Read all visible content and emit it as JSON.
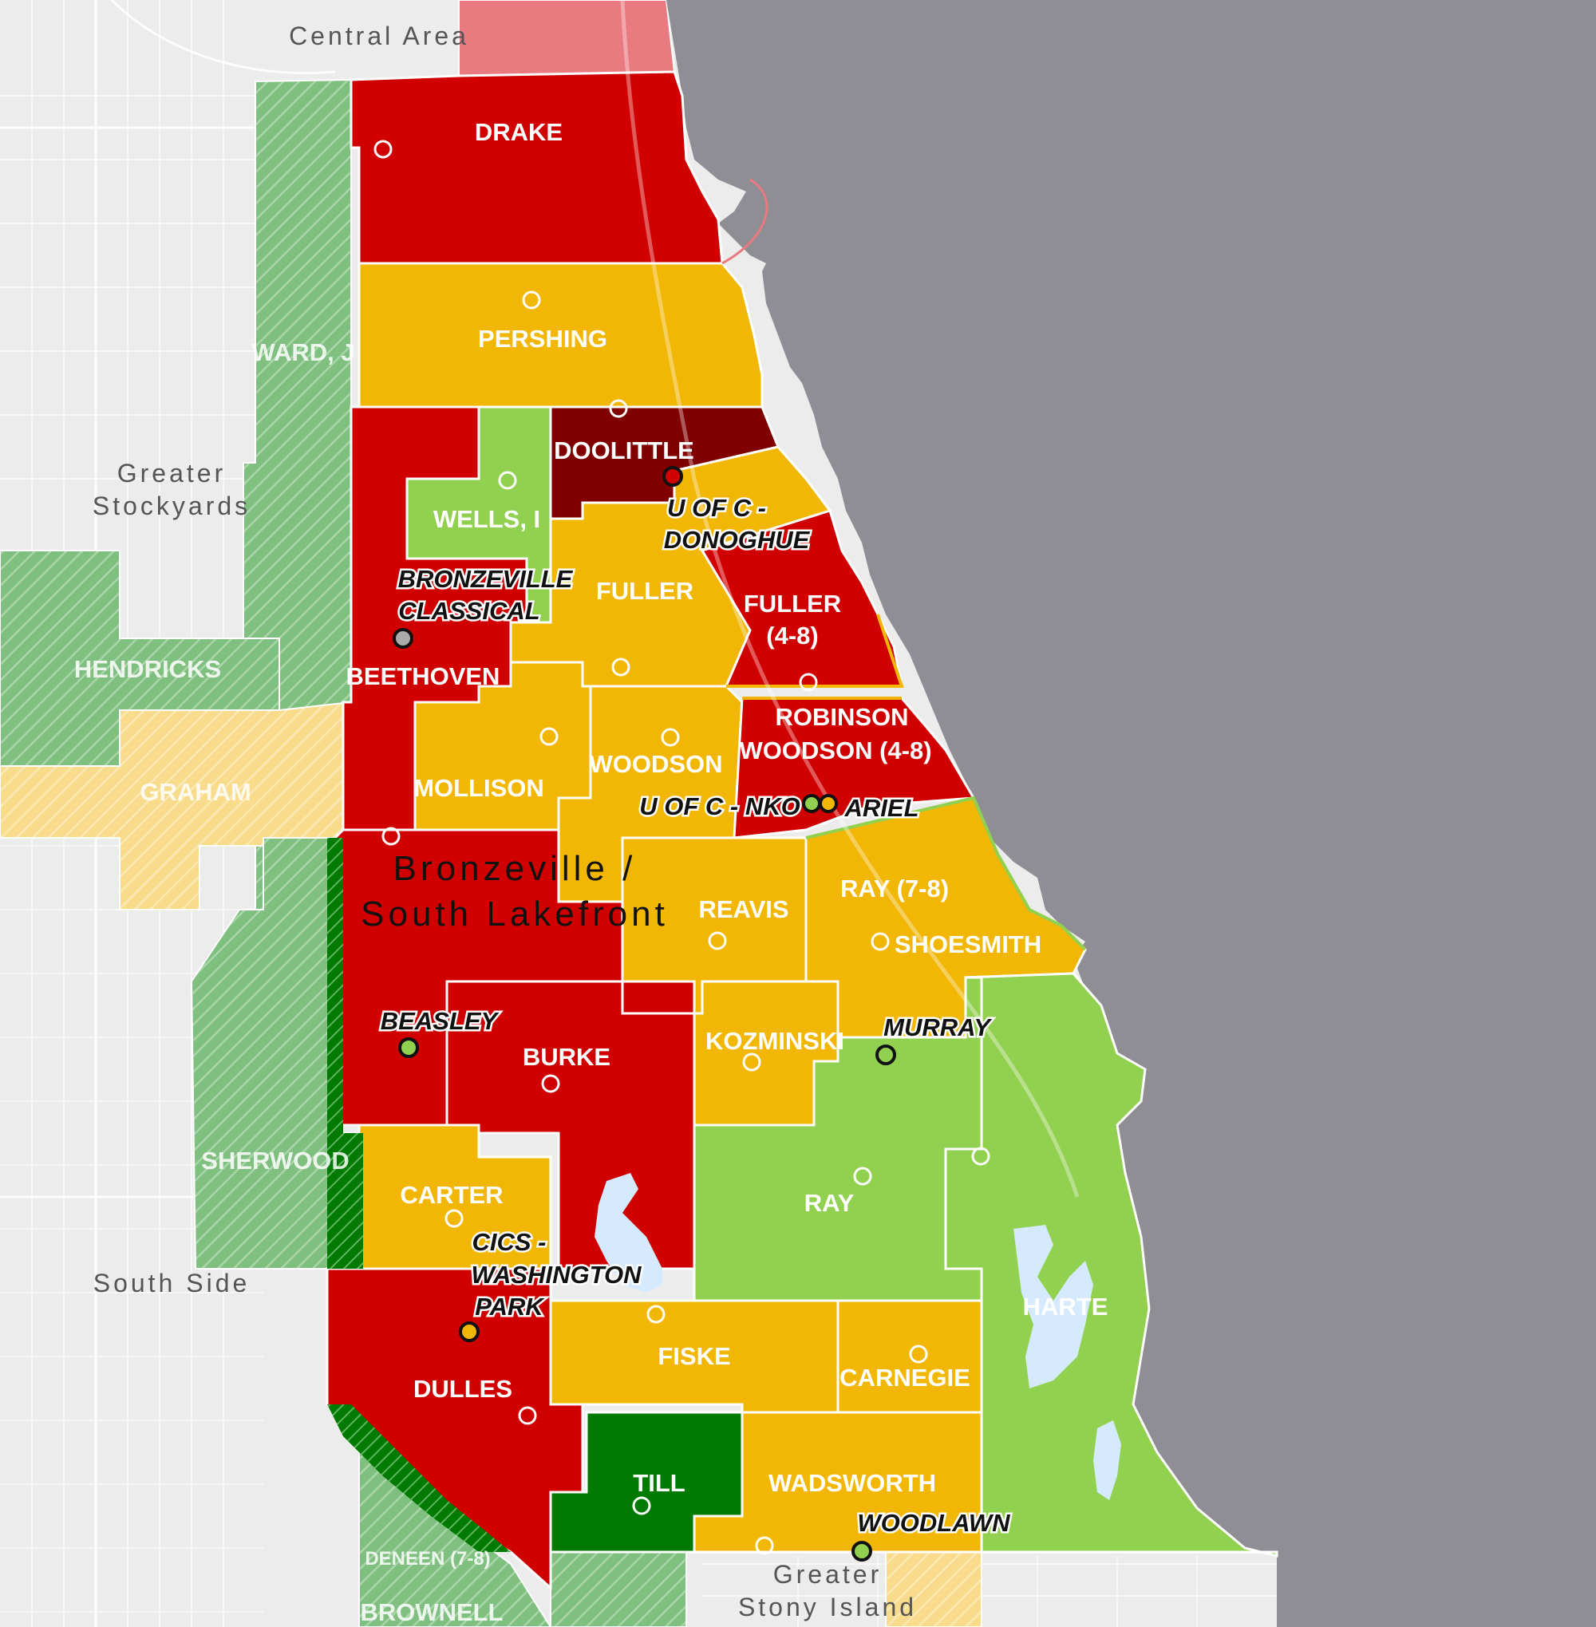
{
  "map": {
    "colors": {
      "lake": "#8f8e94",
      "land": "#ececec",
      "red": "#d10000",
      "dark_red": "#800000",
      "orange": "#f2b705",
      "light_green": "#92d050",
      "dark_green": "#007a00",
      "outside_green": "#7fbf7f",
      "outside_orange": "#f8dc8c",
      "outside_red": "#e87a80"
    },
    "regions": {
      "central_area": "Central Area",
      "greater_stockyards_1": "Greater",
      "greater_stockyards_2": "Stockyards",
      "south_side": "South Side",
      "greater_stony_island_1": "Greater",
      "greater_stony_island_2": "Stony Island",
      "bronzeville_1": "Bronzeville /",
      "bronzeville_2": "South Lakefront"
    },
    "zones": {
      "drake": "DRAKE",
      "pershing": "PERSHING",
      "doolittle": "DOOLITTLE",
      "wells_i": "WELLS, I",
      "fuller": "FULLER",
      "fuller_48_1": "FULLER",
      "fuller_48_2": "(4-8)",
      "beethoven": "BEETHOVEN",
      "robinson": "ROBINSON",
      "woodson_48": "WOODSON (4-8)",
      "mollison": "MOLLISON",
      "woodson": "WOODSON",
      "reavis": "REAVIS",
      "ray_78": "RAY (7-8)",
      "shoesmith": "SHOESMITH",
      "kozminski": "KOZMINSKI",
      "burke": "BURKE",
      "ray": "RAY",
      "carter": "CARTER",
      "harte": "HARTE",
      "fiske": "FISKE",
      "carnegie": "CARNEGIE",
      "dulles": "DULLES",
      "till": "TILL",
      "wadsworth": "WADSWORTH",
      "ward_j": "WARD, J",
      "hendricks": "HENDRICKS",
      "graham": "GRAHAM",
      "sherwood": "SHERWOOD",
      "deneen": "DENEEN (7-8)",
      "brownell": "BROWNELL"
    },
    "charter_schools": {
      "bronzeville_classical_1": "BRONZEVILLE",
      "bronzeville_classical_2": "CLASSICAL",
      "uofc_donoghue_1": "U OF C -",
      "uofc_donoghue_2": "DONOGHUE",
      "uofc_nko": "U OF C - NKO",
      "ariel": "ARIEL",
      "beasley": "BEASLEY",
      "murray": "MURRAY",
      "cics_1": "CICS -",
      "cics_2": "WASHINGTON",
      "cics_3": "PARK",
      "woodlawn": "WOODLAWN"
    }
  }
}
